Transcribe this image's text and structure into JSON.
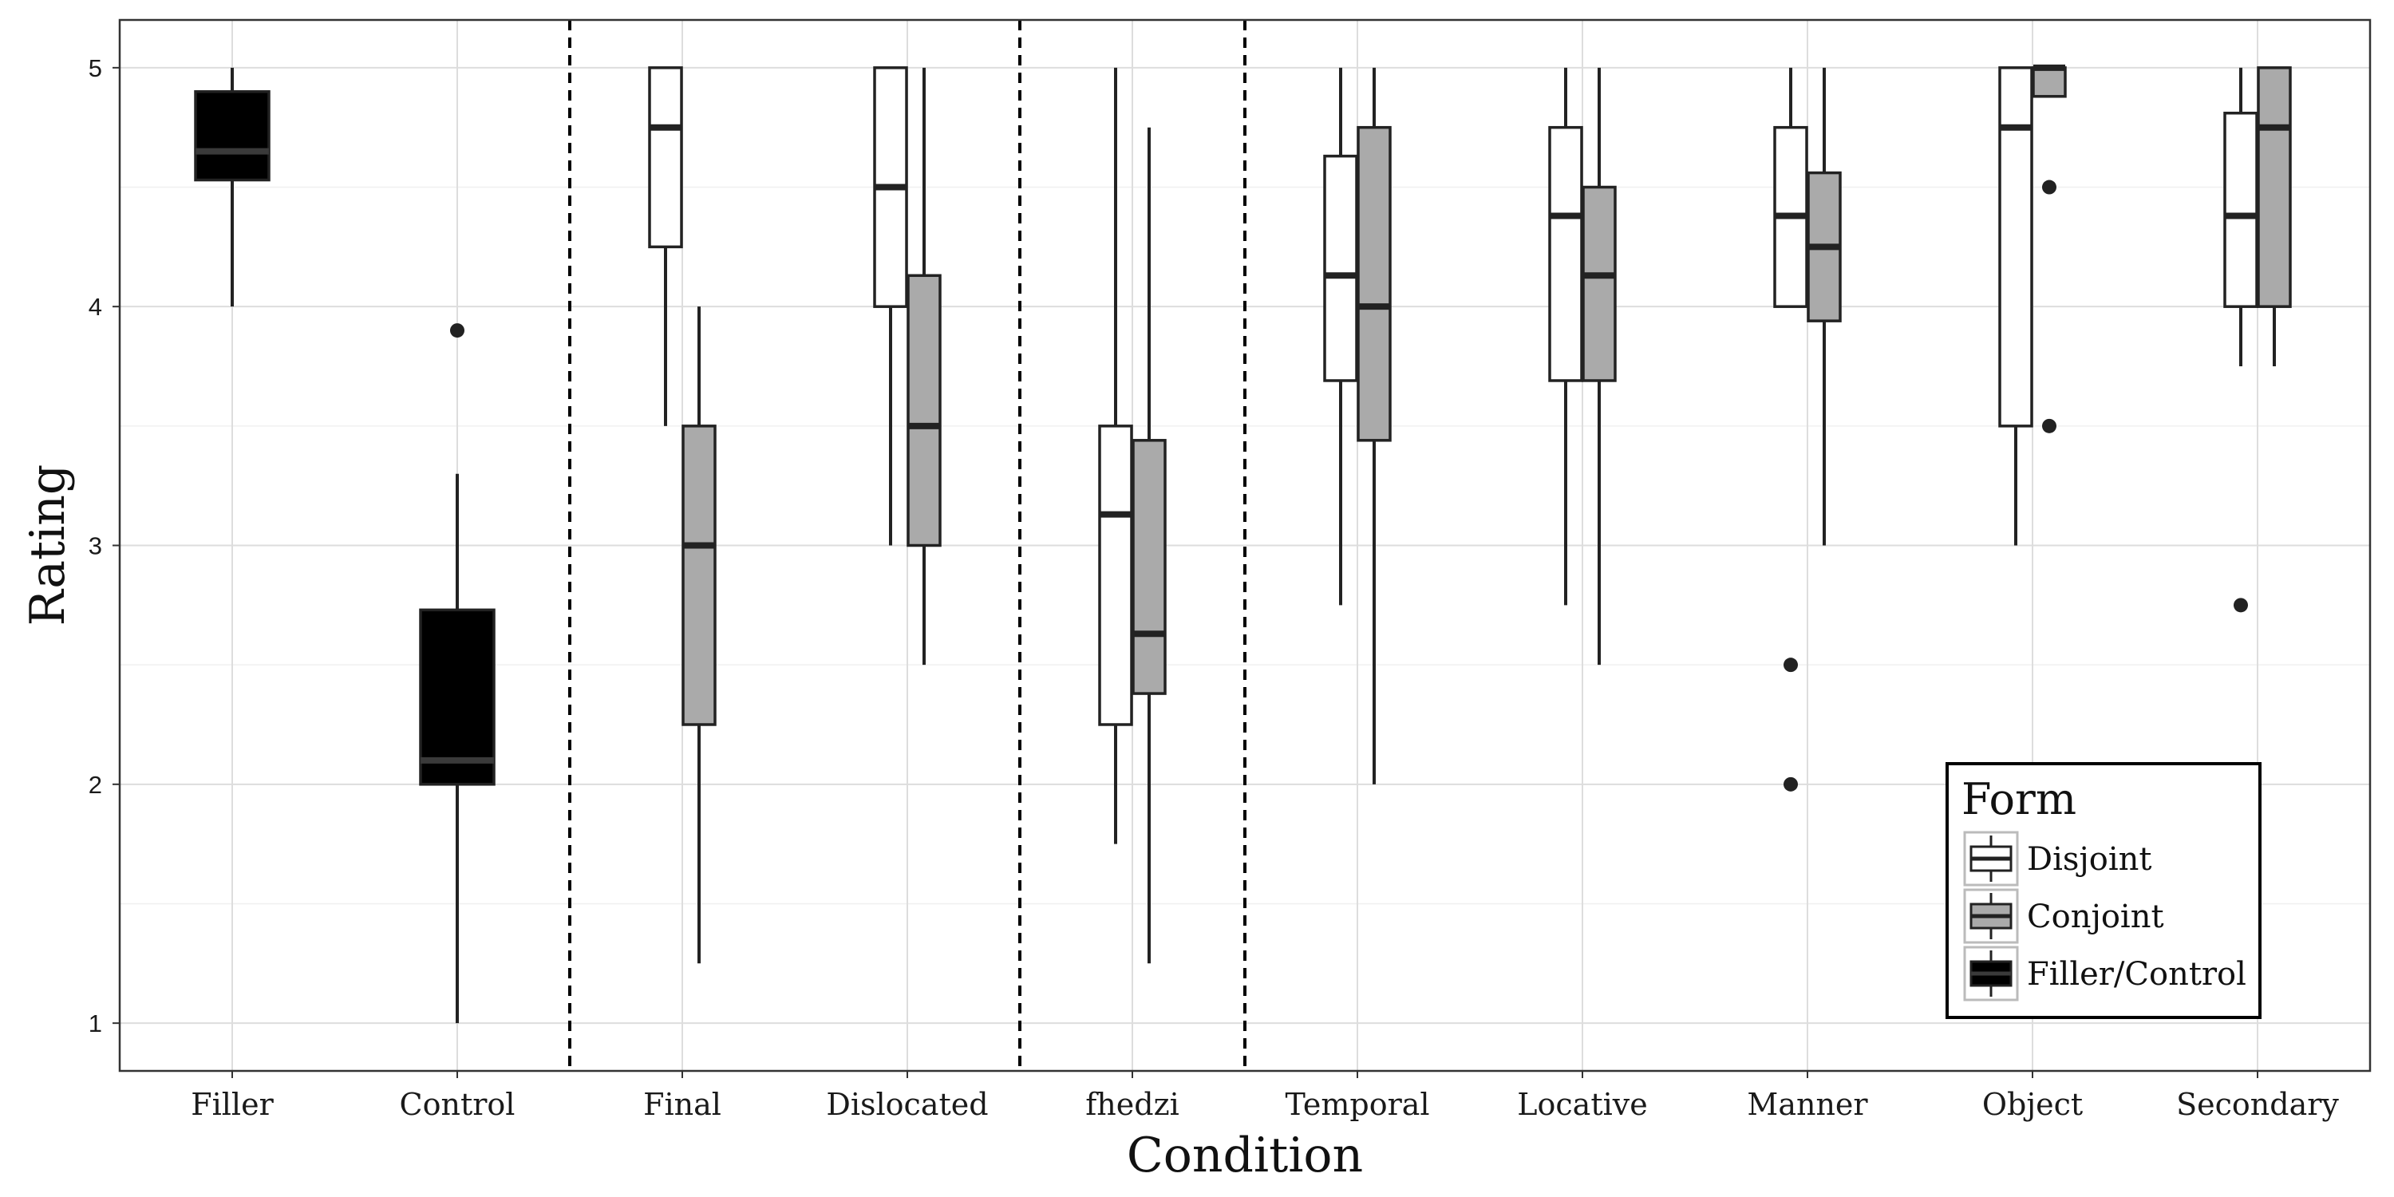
{
  "chart_data": {
    "type": "boxplot",
    "xlabel": "Condition",
    "ylabel": "Rating",
    "ylim": [
      0.8,
      5.2
    ],
    "yticks": [
      1,
      2,
      3,
      4,
      5
    ],
    "grid": true,
    "categories": [
      "Filler",
      "Control",
      "Final",
      "Dislocated",
      "fhedzi",
      "Temporal",
      "Locative",
      "Manner",
      "Object",
      "Secondary"
    ],
    "dividers_after": [
      "Control",
      "Dislocated",
      "fhedzi"
    ],
    "legend": {
      "title": "Form",
      "position": "bottom-right",
      "entries": [
        {
          "name": "Disjoint",
          "color": "#ffffff"
        },
        {
          "name": "Conjoint",
          "color": "#aaaaaa"
        },
        {
          "name": "Filler/Control",
          "color": "#000000"
        }
      ]
    },
    "series": [
      {
        "name": "Filler/Control",
        "color": "#000000",
        "boxes": [
          {
            "category": "Filler",
            "min": 4.0,
            "q1": 4.53,
            "median": 4.65,
            "q3": 4.9,
            "max": 5.0,
            "outliers": []
          },
          {
            "category": "Control",
            "min": 1.0,
            "q1": 2.0,
            "median": 2.1,
            "q3": 2.73,
            "max": 3.3,
            "outliers": [
              3.9
            ]
          }
        ]
      },
      {
        "name": "Disjoint",
        "color": "#ffffff",
        "boxes": [
          {
            "category": "Final",
            "min": 3.5,
            "q1": 4.25,
            "median": 4.75,
            "q3": 5.0,
            "max": 5.0,
            "outliers": []
          },
          {
            "category": "Dislocated",
            "min": 3.0,
            "q1": 4.0,
            "median": 4.5,
            "q3": 5.0,
            "max": 5.0,
            "outliers": []
          },
          {
            "category": "fhedzi",
            "min": 1.75,
            "q1": 2.25,
            "median": 3.13,
            "q3": 3.5,
            "max": 5.0,
            "outliers": []
          },
          {
            "category": "Temporal",
            "min": 2.75,
            "q1": 3.69,
            "median": 4.13,
            "q3": 4.63,
            "max": 5.0,
            "outliers": []
          },
          {
            "category": "Locative",
            "min": 2.75,
            "q1": 3.69,
            "median": 4.38,
            "q3": 4.75,
            "max": 5.0,
            "outliers": []
          },
          {
            "category": "Manner",
            "min": 4.0,
            "q1": 4.0,
            "median": 4.38,
            "q3": 4.75,
            "max": 5.0,
            "outliers": [
              2.5,
              2.0
            ]
          },
          {
            "category": "Object",
            "min": 3.0,
            "q1": 3.5,
            "median": 4.75,
            "q3": 5.0,
            "max": 5.0,
            "outliers": []
          },
          {
            "category": "Secondary",
            "min": 3.75,
            "q1": 4.0,
            "median": 4.38,
            "q3": 4.81,
            "max": 5.0,
            "outliers": [
              2.75
            ]
          }
        ]
      },
      {
        "name": "Conjoint",
        "color": "#aaaaaa",
        "boxes": [
          {
            "category": "Final",
            "min": 1.25,
            "q1": 2.25,
            "median": 3.0,
            "q3": 3.5,
            "max": 4.0,
            "outliers": []
          },
          {
            "category": "Dislocated",
            "min": 2.5,
            "q1": 3.0,
            "median": 3.5,
            "q3": 4.13,
            "max": 5.0,
            "outliers": []
          },
          {
            "category": "fhedzi",
            "min": 1.25,
            "q1": 2.38,
            "median": 2.63,
            "q3": 3.44,
            "max": 4.75,
            "outliers": []
          },
          {
            "category": "Temporal",
            "min": 2.0,
            "q1": 3.44,
            "median": 4.0,
            "q3": 4.75,
            "max": 5.0,
            "outliers": []
          },
          {
            "category": "Locative",
            "min": 2.5,
            "q1": 3.69,
            "median": 4.13,
            "q3": 4.5,
            "max": 5.0,
            "outliers": []
          },
          {
            "category": "Manner",
            "min": 3.0,
            "q1": 3.94,
            "median": 4.25,
            "q3": 4.56,
            "max": 5.0,
            "outliers": []
          },
          {
            "category": "Object",
            "min": 4.88,
            "q1": 4.88,
            "median": 5.0,
            "q3": 5.0,
            "max": 5.0,
            "outliers": [
              4.5,
              3.5
            ]
          },
          {
            "category": "Secondary",
            "min": 3.75,
            "q1": 4.0,
            "median": 4.75,
            "q3": 5.0,
            "max": 5.0,
            "outliers": []
          }
        ]
      }
    ]
  }
}
